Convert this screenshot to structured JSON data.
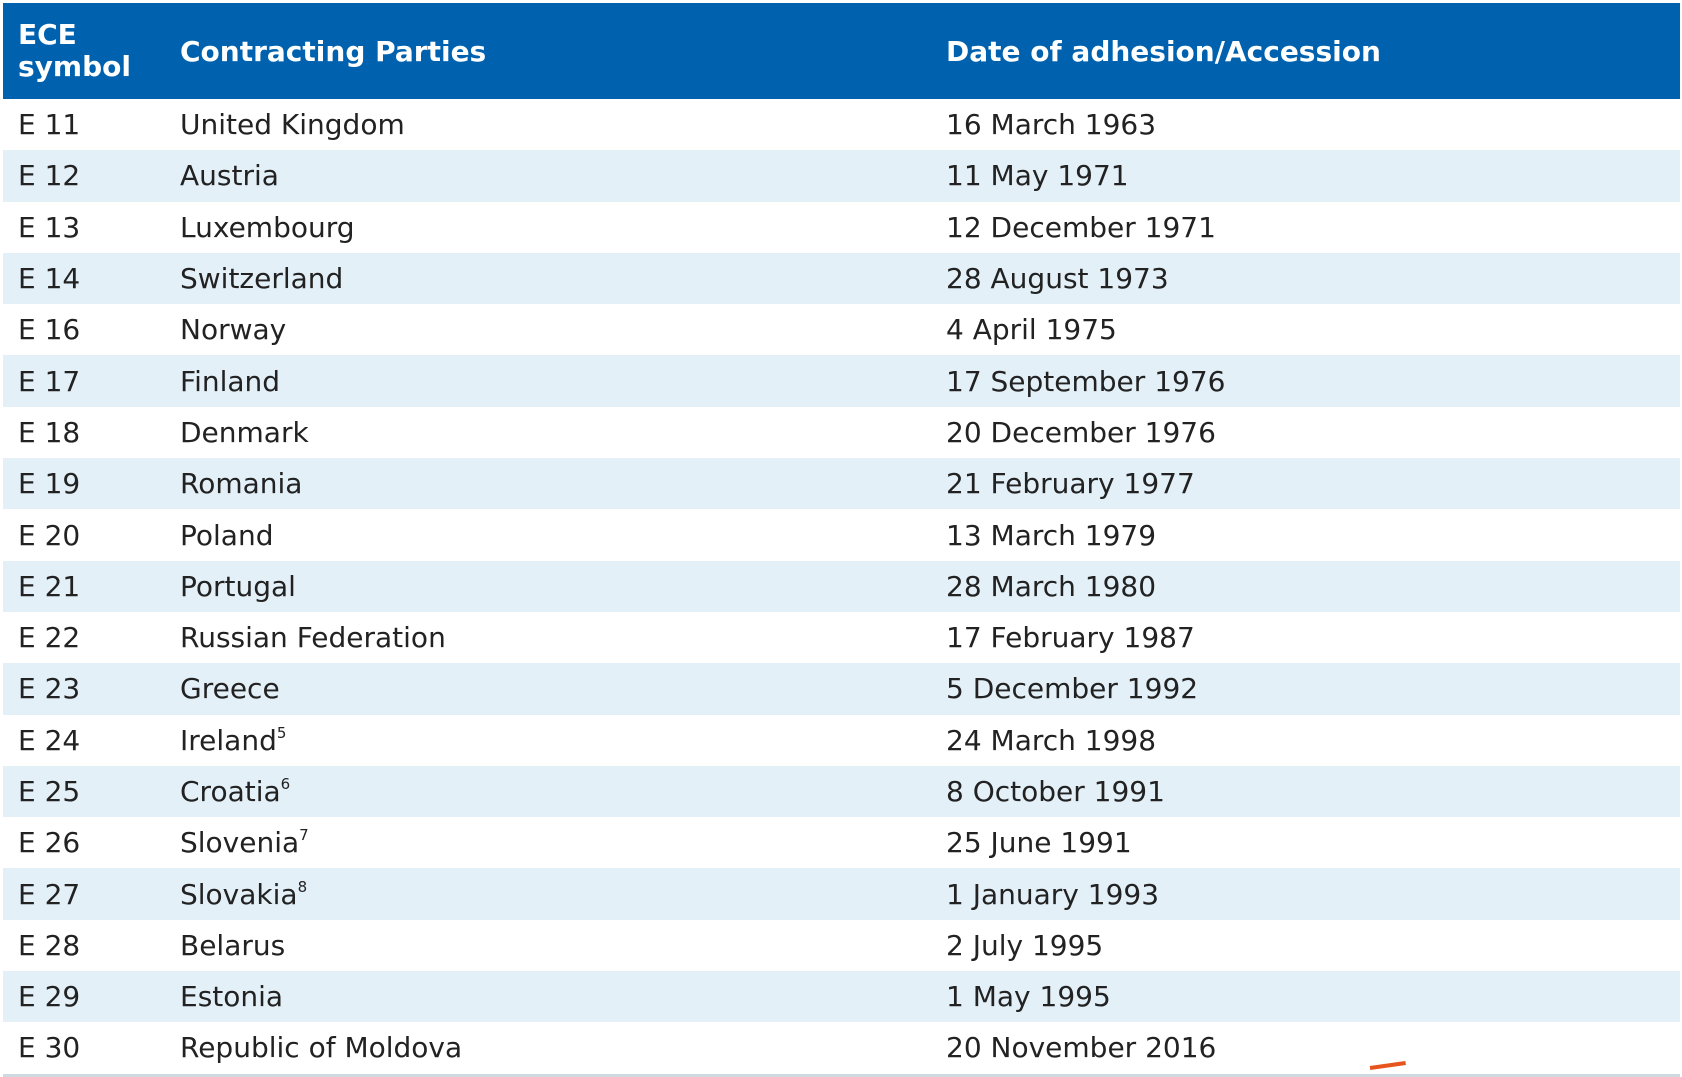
{
  "header": {
    "symbol_label_line1": "ECE",
    "symbol_label_line2": "symbol",
    "parties_label": "Contracting Parties",
    "date_label": "Date of adhesion/Accession"
  },
  "rows": [
    {
      "symbol": "E 11",
      "party": "United Kingdom",
      "note": "",
      "date": "16 March 1963"
    },
    {
      "symbol": "E 12",
      "party": "Austria",
      "note": "",
      "date": "11 May 1971"
    },
    {
      "symbol": "E 13",
      "party": "Luxembourg",
      "note": "",
      "date": "12 December 1971"
    },
    {
      "symbol": "E 14",
      "party": "Switzerland",
      "note": "",
      "date": "28 August 1973"
    },
    {
      "symbol": "E 16",
      "party": "Norway",
      "note": "",
      "date": "4 April 1975"
    },
    {
      "symbol": "E 17",
      "party": "Finland",
      "note": "",
      "date": "17 September 1976"
    },
    {
      "symbol": "E 18",
      "party": "Denmark",
      "note": "",
      "date": "20 December 1976"
    },
    {
      "symbol": "E 19",
      "party": "Romania",
      "note": "",
      "date": "21 February 1977"
    },
    {
      "symbol": "E 20",
      "party": "Poland",
      "note": "",
      "date": "13 March 1979"
    },
    {
      "symbol": "E 21",
      "party": "Portugal",
      "note": "",
      "date": "28 March 1980"
    },
    {
      "symbol": "E 22",
      "party": "Russian Federation",
      "note": "",
      "date": "17 February 1987"
    },
    {
      "symbol": "E 23",
      "party": "Greece",
      "note": "",
      "date": "5 December 1992"
    },
    {
      "symbol": "E 24",
      "party": "Ireland",
      "note": "5",
      "date": "24 March 1998"
    },
    {
      "symbol": "E 25",
      "party": "Croatia",
      "note": "6",
      "date": "8 October 1991"
    },
    {
      "symbol": "E 26",
      "party": "Slovenia",
      "note": "7",
      "date": "25 June 1991"
    },
    {
      "symbol": "E 27",
      "party": "Slovakia",
      "note": "8",
      "date": "1 January 1993"
    },
    {
      "symbol": "E 28",
      "party": "Belarus",
      "note": "",
      "date": "2 July 1995"
    },
    {
      "symbol": "E 29",
      "party": "Estonia",
      "note": "",
      "date": "1 May 1995"
    },
    {
      "symbol": "E 30",
      "party": "Republic of Moldova",
      "note": "",
      "date": "20 November 2016"
    }
  ],
  "colors": {
    "header_bg": "#0062ae",
    "alt_row_bg": "#e3f0f8",
    "text": "#222222"
  }
}
